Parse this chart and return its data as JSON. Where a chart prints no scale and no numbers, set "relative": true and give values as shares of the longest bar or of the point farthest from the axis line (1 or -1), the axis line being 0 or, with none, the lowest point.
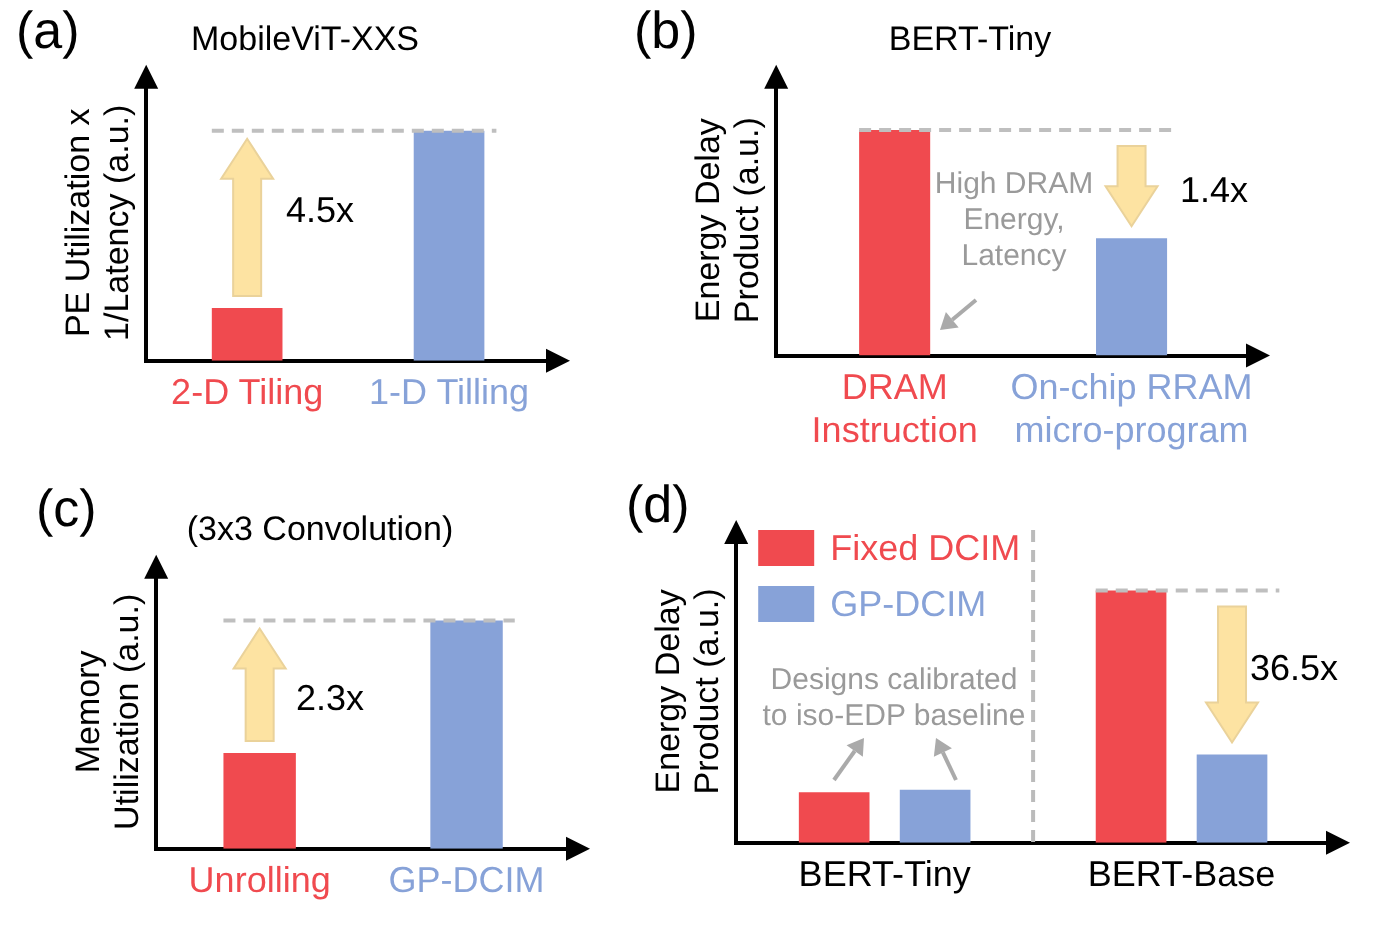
{
  "chart_data": [
    {
      "type": "bar",
      "title": "MobileViT-XXS",
      "ylabel": "PE Utilization x\n1/Latency (a.u.)",
      "categories": [
        "2-D Tiling",
        "1-D Tilling"
      ],
      "values": [
        0.23,
        1
      ],
      "colors": [
        "#f04a4f",
        "#87a2d8"
      ],
      "relative": true,
      "ref_lines": [
        {
          "axis": "y",
          "value": 1,
          "color": "#bfbfbf",
          "line_style": "dashed"
        }
      ],
      "annotations": [
        "(a)",
        "4.5x"
      ]
    },
    {
      "type": "bar",
      "title": "BERT-Tiny",
      "ylabel": "Energy Delay\nProduct (a.u.)",
      "categories": [
        "DRAM\nInstruction",
        "On-chip RRAM\nmicro-program"
      ],
      "values": [
        1,
        0.52
      ],
      "colors": [
        "#f04a4f",
        "#87a2d8"
      ],
      "relative": true,
      "ref_lines": [
        {
          "axis": "y",
          "value": 1,
          "color": "#bfbfbf",
          "line_style": "dashed"
        }
      ],
      "annotations": [
        "(b)",
        "High DRAM\nEnergy,\nLatency",
        "1.4x"
      ]
    },
    {
      "type": "bar",
      "title": "(3x3 Convolution)",
      "ylabel": "Memory\nUtilization (a.u.)",
      "categories": [
        "Unrolling",
        "GP-DCIM"
      ],
      "values": [
        0.42,
        1
      ],
      "colors": [
        "#f04a4f",
        "#87a2d8"
      ],
      "relative": true,
      "ref_lines": [
        {
          "axis": "y",
          "value": 1,
          "color": "#bfbfbf",
          "line_style": "dashed"
        }
      ],
      "annotations": [
        "(c)",
        "2.3x"
      ]
    },
    {
      "type": "bar",
      "ylabel": "Energy Delay\nProduct (a.u.)",
      "categories": [
        "BERT-Tiny",
        "BERT-Base"
      ],
      "series": [
        {
          "name": "Fixed DCIM",
          "color": "#f04a4f",
          "values": [
            0.2,
            1
          ]
        },
        {
          "name": "GP-DCIM",
          "color": "#87a2d8",
          "values": [
            0.21,
            0.35
          ]
        }
      ],
      "relative": true,
      "legend": "top left",
      "ref_lines": [
        {
          "axis": "y",
          "value": 1,
          "color": "#bfbfbf",
          "line_style": "dashed"
        }
      ],
      "annotations": [
        "(d)",
        "Designs calibrated\nto iso-EDP baseline",
        "36.5x"
      ]
    }
  ]
}
